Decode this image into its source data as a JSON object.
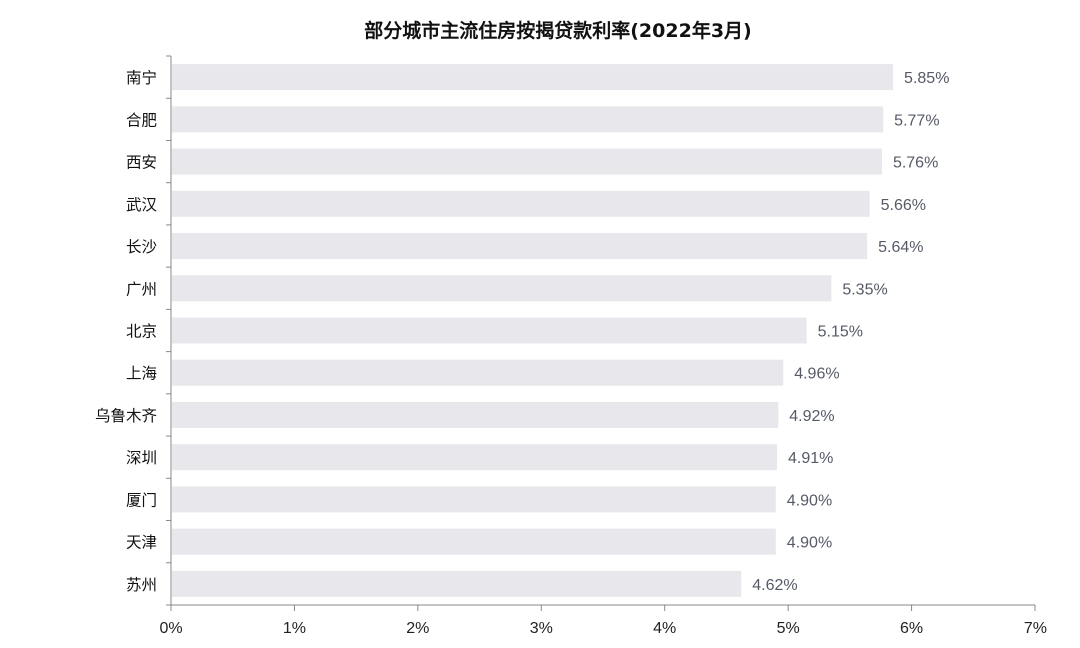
{
  "chart_data": {
    "type": "bar",
    "orientation": "horizontal",
    "title": "部分城市主流住房按揭贷款利率(2022年3月)",
    "xlabel": "",
    "ylabel": "",
    "categories": [
      "南宁",
      "合肥",
      "西安",
      "武汉",
      "长沙",
      "广州",
      "北京",
      "上海",
      "乌鲁木齐",
      "深圳",
      "厦门",
      "天津",
      "苏州"
    ],
    "values": [
      5.85,
      5.77,
      5.76,
      5.66,
      5.64,
      5.35,
      5.15,
      4.96,
      4.92,
      4.91,
      4.9,
      4.9,
      4.62
    ],
    "value_labels": [
      "5.85%",
      "5.77%",
      "5.76%",
      "5.66%",
      "5.64%",
      "5.35%",
      "5.15%",
      "4.96%",
      "4.92%",
      "4.91%",
      "4.90%",
      "4.90%",
      "4.62%"
    ],
    "xlim": [
      0,
      7
    ],
    "xticks": [
      0,
      1,
      2,
      3,
      4,
      5,
      6,
      7
    ],
    "xtick_labels": [
      "0%",
      "1%",
      "2%",
      "3%",
      "4%",
      "5%",
      "6%",
      "7%"
    ],
    "grid": false,
    "legend": "none",
    "bar_color": "#e8e8ec",
    "axis_color": "#888888"
  }
}
